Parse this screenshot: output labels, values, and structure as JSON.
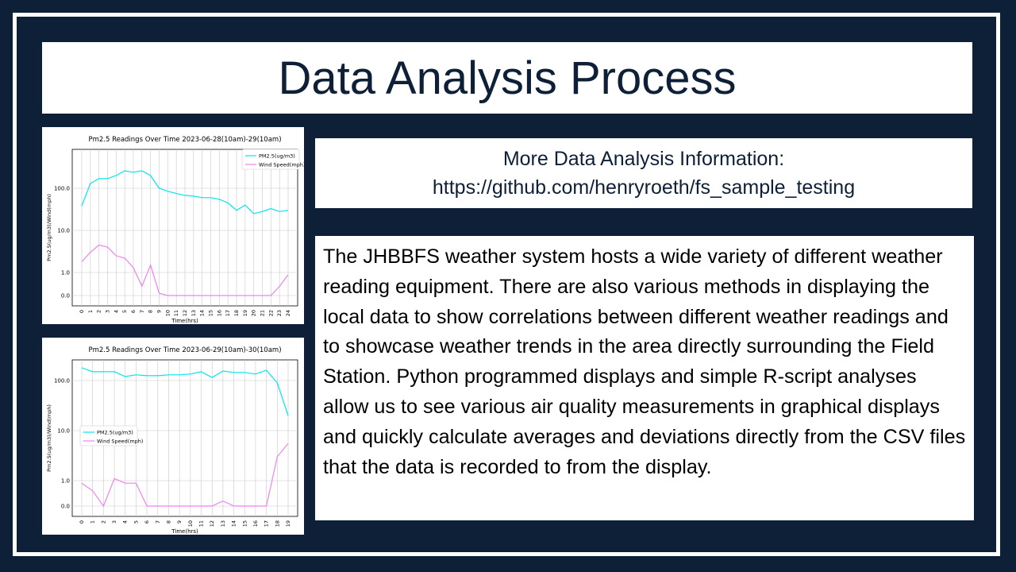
{
  "slide": {
    "title": "Data Analysis Process",
    "info_line1": "More Data Analysis Information:",
    "info_line2": "https://github.com/henryroeth/fs_sample_testing",
    "body": "The JHBBFS weather system hosts a wide variety of different weather reading equipment. There are also various methods in displaying the local data to show correlations between different weather readings and to showcase weather trends in the area directly surrounding the Field Station. Python programmed displays and simple R-script analyses allow us to see various air quality measurements in graphical displays and quickly calculate averages and deviations directly from the CSV files that the data is recorded to from the display."
  },
  "colors": {
    "background": "#0e1f38",
    "pm25": "#00e5ee",
    "wind": "#ee82ee"
  },
  "chart_data": [
    {
      "type": "line",
      "title": "Pm2.5 Readings Over Time 2023-06-28(10am)-29(10am)",
      "xlabel": "Time(hrs)",
      "ylabel": "Pm2.5(ug/m3)/Wind(mph)",
      "yscale": "symlog",
      "yticks": [
        "0.0",
        "1.0",
        "10.0",
        "100.0"
      ],
      "legend": "top-right",
      "grid": true,
      "x": [
        0,
        1,
        2,
        3,
        4,
        5,
        6,
        7,
        8,
        9,
        10,
        11,
        12,
        13,
        14,
        15,
        16,
        17,
        18,
        19,
        20,
        21,
        22,
        23,
        24
      ],
      "series": [
        {
          "name": "PM2.5(ug/m3)",
          "color": "#00e5ee",
          "values": [
            38,
            130,
            170,
            170,
            200,
            260,
            240,
            260,
            200,
            100,
            85,
            75,
            68,
            65,
            60,
            60,
            55,
            45,
            30,
            40,
            25,
            28,
            33,
            28,
            30
          ]
        },
        {
          "name": "Wind Speed(mph)",
          "color": "#ee82ee",
          "values": [
            1.8,
            3.0,
            4.5,
            4.0,
            2.5,
            2.2,
            1.3,
            0.4,
            1.5,
            0.1,
            0,
            0,
            0,
            0,
            0,
            0,
            0,
            0,
            0,
            0,
            0,
            0,
            0,
            0.4,
            0.9
          ]
        }
      ]
    },
    {
      "type": "line",
      "title": "Pm2.5 Readings Over Time 2023-06-29(10am)-30(10am)",
      "xlabel": "Time(hrs)",
      "ylabel": "Pm2.5(ug/m3)/Wind(mph)",
      "yscale": "symlog",
      "yticks": [
        "0.0",
        "1.0",
        "10.0",
        "100.0"
      ],
      "legend": "middle-left",
      "grid": true,
      "x": [
        0,
        1,
        2,
        3,
        4,
        5,
        6,
        7,
        8,
        9,
        10,
        11,
        12,
        13,
        14,
        15,
        16,
        17,
        18,
        19
      ],
      "series": [
        {
          "name": "PM2.5(ug/m3)",
          "color": "#00e5ee",
          "values": [
            180,
            150,
            150,
            150,
            120,
            130,
            125,
            125,
            130,
            130,
            135,
            150,
            115,
            155,
            145,
            145,
            135,
            160,
            90,
            20
          ]
        },
        {
          "name": "Wind Speed(mph)",
          "color": "#ee82ee",
          "values": [
            0.9,
            0.6,
            0.0,
            1.1,
            0.9,
            0.9,
            0,
            0,
            0,
            0,
            0,
            0,
            0,
            0.2,
            0,
            0,
            0,
            0,
            3.0,
            5.5
          ]
        }
      ]
    }
  ]
}
